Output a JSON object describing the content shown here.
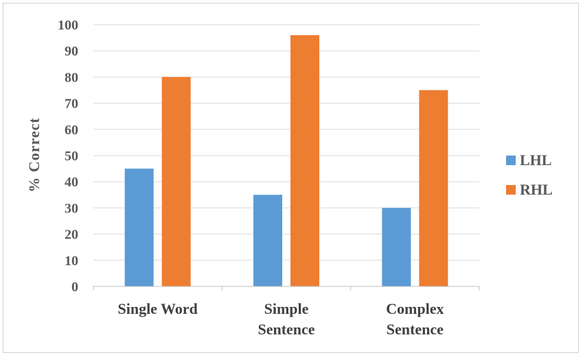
{
  "chart_data": {
    "type": "bar",
    "title": "",
    "xlabel": "",
    "ylabel": "% Correct",
    "ylim": [
      0,
      100
    ],
    "yticks": [
      0,
      10,
      20,
      30,
      40,
      50,
      60,
      70,
      80,
      90,
      100
    ],
    "categories": [
      [
        "Single Word"
      ],
      [
        "Simple",
        "Sentence"
      ],
      [
        "Complex",
        "Sentence"
      ]
    ],
    "series": [
      {
        "name": "LHL",
        "color": "#5b9bd5",
        "values": [
          45,
          35,
          30
        ]
      },
      {
        "name": "RHL",
        "color": "#ed7d31",
        "values": [
          80,
          96,
          75
        ]
      }
    ],
    "grid": true,
    "legend_position": "right"
  }
}
